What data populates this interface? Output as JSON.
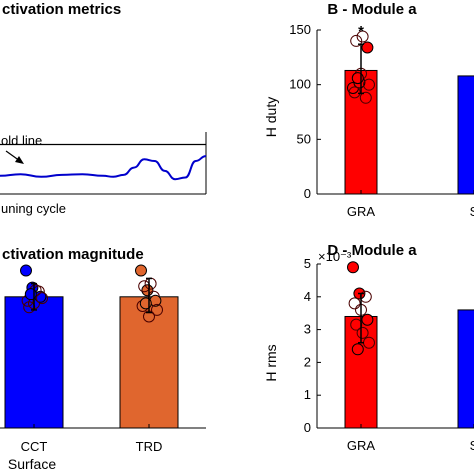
{
  "chart_data": [
    {
      "panel": "A",
      "type": "line",
      "title": "ctivation metrics",
      "annotations": {
        "threshold": "old line",
        "xlabel": "uning cycle"
      },
      "series_color": "#0000cc",
      "curve": {
        "x": [
          0,
          0.1,
          0.2,
          0.3,
          0.4,
          0.5,
          0.55,
          0.6,
          0.65,
          0.7,
          0.75,
          0.8,
          0.85,
          0.9,
          0.95,
          1.0
        ],
        "y": [
          0.05,
          0.1,
          0.02,
          0.08,
          0.1,
          0.05,
          0.02,
          0.08,
          0.3,
          0.55,
          0.5,
          0.2,
          -0.05,
          0.0,
          0.5,
          0.65
        ]
      },
      "threshold_value": 1.0,
      "ylim": [
        -0.5,
        1.5
      ]
    },
    {
      "panel": "B",
      "type": "bar",
      "title": "B - Module a",
      "ylabel": "H duty",
      "ylim": [
        0,
        150
      ],
      "yticks": [
        "0",
        "50",
        "100",
        "150"
      ],
      "categories": [
        "GRA",
        "S"
      ],
      "colors": [
        "#ff0000",
        "#0000ff"
      ],
      "values": [
        113,
        108
      ],
      "err_low": [
        92,
        null
      ],
      "err_high": [
        137,
        null
      ],
      "significance": "*",
      "points": [
        [
          97,
          102,
          88,
          93,
          110,
          134,
          140,
          144,
          100,
          106
        ]
      ]
    },
    {
      "panel": "C",
      "type": "bar",
      "title": "ctivation magnitude",
      "categories": [
        "CCT",
        "TRD"
      ],
      "xlabel": "Surface",
      "colors": [
        "#0000ff",
        "#e0662e"
      ],
      "values": [
        1.0,
        1.0
      ],
      "err_low": [
        0.9,
        0.88
      ],
      "err_high": [
        1.1,
        1.14
      ],
      "ylim": [
        0,
        1.25
      ],
      "points": [
        [
          1.2,
          1.07,
          1.04,
          0.97,
          0.95,
          1.0,
          0.92,
          1.05,
          0.99,
          1.02
        ],
        [
          1.2,
          1.05,
          1.0,
          0.93,
          0.85,
          0.97,
          1.08,
          1.1,
          0.9,
          0.95
        ]
      ]
    },
    {
      "panel": "D",
      "type": "bar",
      "title": "D - Module a",
      "ylabel": "H rms",
      "exponent_label": "×10⁻³",
      "ylim": [
        0,
        5
      ],
      "yticks": [
        "0",
        "1",
        "2",
        "3",
        "4",
        "5"
      ],
      "categories": [
        "GRA",
        "S"
      ],
      "colors": [
        "#ff0000",
        "#0000ff"
      ],
      "values": [
        3.4,
        3.6
      ],
      "err_low": [
        2.6,
        null
      ],
      "err_high": [
        4.1,
        null
      ],
      "points": [
        [
          4.9,
          4.1,
          4.0,
          3.8,
          3.6,
          3.3,
          3.15,
          2.9,
          2.6,
          2.4
        ]
      ]
    }
  ]
}
